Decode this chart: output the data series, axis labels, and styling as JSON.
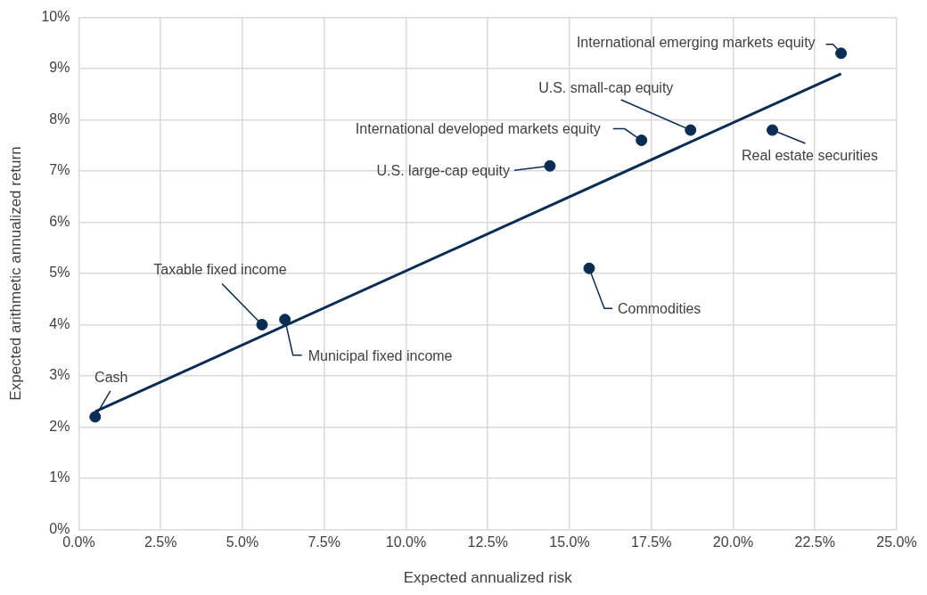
{
  "chart_data": {
    "type": "scatter",
    "xlabel": "Expected annualized risk",
    "ylabel": "Expected arithmetic annualized return",
    "series": [
      {
        "color": "#0b2d55",
        "marker": "circle",
        "x": [
          0.5,
          5.6,
          6.3,
          14.4,
          17.2,
          18.7,
          21.2,
          15.6,
          23.3
        ],
        "values": [
          2.2,
          4.0,
          4.1,
          7.1,
          7.6,
          7.8,
          7.8,
          5.1,
          9.3
        ]
      },
      {
        "type": "line",
        "color": "#0b2d55",
        "marker": "none",
        "line_style": "solid",
        "x": [
          0.5,
          23.3
        ],
        "values": [
          2.3,
          8.9
        ]
      }
    ],
    "annotations": [
      {
        "text": "Cash",
        "x": 0.5,
        "y": 2.2
      },
      {
        "text": "Taxable fixed income",
        "x": 5.6,
        "y": 4.0
      },
      {
        "text": "Municipal fixed income",
        "x": 6.3,
        "y": 4.1
      },
      {
        "text": "U.S. large-cap equity",
        "x": 14.4,
        "y": 7.1
      },
      {
        "text": "International developed markets equity",
        "x": 17.2,
        "y": 7.6
      },
      {
        "text": "U.S. small-cap equity",
        "x": 18.7,
        "y": 7.8
      },
      {
        "text": "Real estate securities",
        "x": 21.2,
        "y": 7.8
      },
      {
        "text": "Commodities",
        "x": 15.6,
        "y": 5.1
      },
      {
        "text": "International emerging markets equity",
        "x": 23.3,
        "y": 9.3
      }
    ],
    "xlim": [
      0,
      25
    ],
    "xticks": [
      {
        "value": 0,
        "label": "0.0%"
      },
      {
        "value": 2.5,
        "label": "2.5%"
      },
      {
        "value": 5,
        "label": "5.0%"
      },
      {
        "value": 7.5,
        "label": "7.5%"
      },
      {
        "value": 10,
        "label": "10.0%"
      },
      {
        "value": 12.5,
        "label": "12.5%"
      },
      {
        "value": 15,
        "label": "15.0%"
      },
      {
        "value": 17.5,
        "label": "17.5%"
      },
      {
        "value": 20,
        "label": "20.0%"
      },
      {
        "value": 22.5,
        "label": "22.5%"
      },
      {
        "value": 25,
        "label": "25.0%"
      }
    ],
    "ylim": [
      0,
      10
    ],
    "yticks": [
      {
        "value": 0,
        "label": "0%"
      },
      {
        "value": 1,
        "label": "1%"
      },
      {
        "value": 2,
        "label": "2%"
      },
      {
        "value": 3,
        "label": "3%"
      },
      {
        "value": 4,
        "label": "4%"
      },
      {
        "value": 5,
        "label": "5%"
      },
      {
        "value": 6,
        "label": "6%"
      },
      {
        "value": 7,
        "label": "7%"
      },
      {
        "value": 8,
        "label": "8%"
      },
      {
        "value": 9,
        "label": "9%"
      },
      {
        "value": 10,
        "label": "10%"
      }
    ],
    "grid": true
  }
}
